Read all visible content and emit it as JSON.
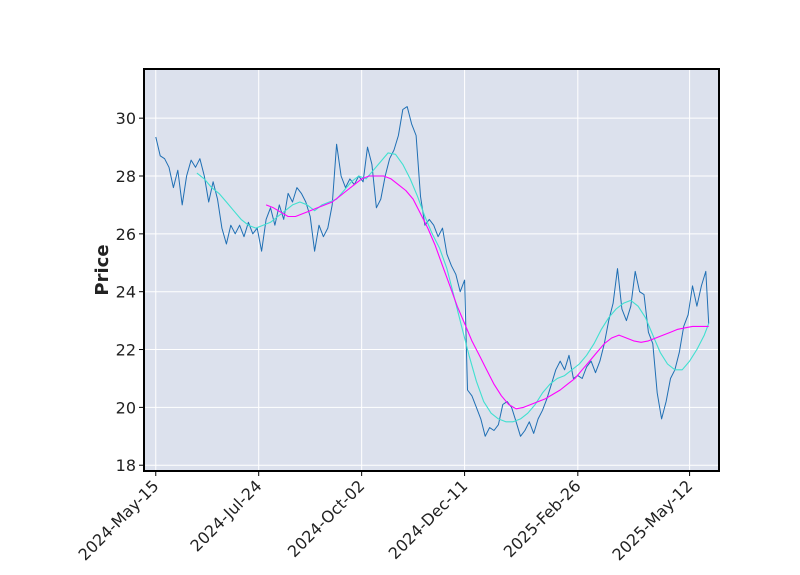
{
  "chart_data": {
    "type": "line",
    "title": "",
    "xlabel": "",
    "ylabel": "Price",
    "x_tick_labels": [
      "2024-May-15",
      "2024-Jul-24",
      "2024-Oct-02",
      "2024-Dec-11",
      "2025-Feb-26",
      "2025-May-12"
    ],
    "y_ticks": [
      18,
      20,
      22,
      24,
      26,
      28,
      30
    ],
    "ylim": [
      17.8,
      31.7
    ],
    "grid": true,
    "legend": "none",
    "colors": {
      "background": "#dce1ed",
      "grid": "#ffffff",
      "price": "#1f6fb4",
      "ma_fast": "#40e0d0",
      "ma_slow": "#ff00ff"
    },
    "series": [
      {
        "key": "price",
        "x_start": "2024-05-15",
        "points": [
          [
            0,
            29.35
          ],
          [
            3,
            28.7
          ],
          [
            6,
            28.6
          ],
          [
            9,
            28.3
          ],
          [
            12,
            27.6
          ],
          [
            15,
            28.2
          ],
          [
            18,
            27.0
          ],
          [
            21,
            28.0
          ],
          [
            24,
            28.55
          ],
          [
            27,
            28.3
          ],
          [
            30,
            28.6
          ],
          [
            33,
            28.0
          ],
          [
            36,
            27.1
          ],
          [
            39,
            27.8
          ],
          [
            42,
            27.2
          ],
          [
            45,
            26.2
          ],
          [
            48,
            25.65
          ],
          [
            51,
            26.3
          ],
          [
            54,
            26.0
          ],
          [
            57,
            26.3
          ],
          [
            60,
            25.9
          ],
          [
            63,
            26.4
          ],
          [
            66,
            26.0
          ],
          [
            69,
            26.2
          ],
          [
            72,
            25.4
          ],
          [
            75,
            26.5
          ],
          [
            78,
            26.9
          ],
          [
            81,
            26.3
          ],
          [
            84,
            27.0
          ],
          [
            87,
            26.5
          ],
          [
            90,
            27.4
          ],
          [
            93,
            27.1
          ],
          [
            96,
            27.6
          ],
          [
            99,
            27.4
          ],
          [
            102,
            27.1
          ],
          [
            105,
            26.6
          ],
          [
            108,
            25.4
          ],
          [
            111,
            26.3
          ],
          [
            114,
            25.9
          ],
          [
            117,
            26.2
          ],
          [
            120,
            27.0
          ],
          [
            123,
            29.1
          ],
          [
            126,
            28.0
          ],
          [
            129,
            27.6
          ],
          [
            132,
            27.9
          ],
          [
            135,
            27.7
          ],
          [
            138,
            28.0
          ],
          [
            141,
            27.8
          ],
          [
            144,
            29.0
          ],
          [
            147,
            28.4
          ],
          [
            150,
            26.9
          ],
          [
            153,
            27.2
          ],
          [
            156,
            28.0
          ],
          [
            159,
            28.6
          ],
          [
            162,
            28.9
          ],
          [
            165,
            29.4
          ],
          [
            168,
            30.3
          ],
          [
            171,
            30.4
          ],
          [
            174,
            29.8
          ],
          [
            177,
            29.4
          ],
          [
            180,
            27.3
          ],
          [
            183,
            26.3
          ],
          [
            186,
            26.5
          ],
          [
            189,
            26.3
          ],
          [
            192,
            25.9
          ],
          [
            195,
            26.2
          ],
          [
            198,
            25.3
          ],
          [
            201,
            24.9
          ],
          [
            204,
            24.6
          ],
          [
            207,
            24.0
          ],
          [
            210,
            24.4
          ],
          [
            212,
            20.6
          ],
          [
            215,
            20.4
          ],
          [
            218,
            20.0
          ],
          [
            221,
            19.6
          ],
          [
            224,
            19.0
          ],
          [
            227,
            19.3
          ],
          [
            230,
            19.2
          ],
          [
            233,
            19.4
          ],
          [
            236,
            20.1
          ],
          [
            239,
            20.2
          ],
          [
            242,
            20.0
          ],
          [
            245,
            19.5
          ],
          [
            248,
            19.0
          ],
          [
            251,
            19.2
          ],
          [
            254,
            19.5
          ],
          [
            257,
            19.1
          ],
          [
            260,
            19.6
          ],
          [
            263,
            19.9
          ],
          [
            266,
            20.3
          ],
          [
            269,
            20.8
          ],
          [
            272,
            21.3
          ],
          [
            275,
            21.6
          ],
          [
            278,
            21.3
          ],
          [
            281,
            21.8
          ],
          [
            284,
            21.0
          ],
          [
            287,
            21.1
          ],
          [
            290,
            21.0
          ],
          [
            293,
            21.4
          ],
          [
            296,
            21.6
          ],
          [
            299,
            21.2
          ],
          [
            302,
            21.6
          ],
          [
            305,
            22.2
          ],
          [
            308,
            23.0
          ],
          [
            311,
            23.6
          ],
          [
            314,
            24.8
          ],
          [
            317,
            23.4
          ],
          [
            320,
            23.0
          ],
          [
            323,
            23.5
          ],
          [
            326,
            24.7
          ],
          [
            329,
            24.0
          ],
          [
            332,
            23.9
          ],
          [
            335,
            22.6
          ],
          [
            338,
            22.2
          ],
          [
            341,
            20.5
          ],
          [
            344,
            19.6
          ],
          [
            347,
            20.2
          ],
          [
            350,
            21.0
          ],
          [
            353,
            21.3
          ],
          [
            356,
            21.9
          ],
          [
            359,
            22.8
          ],
          [
            362,
            23.2
          ],
          [
            365,
            24.2
          ],
          [
            368,
            23.5
          ],
          [
            371,
            24.2
          ],
          [
            374,
            24.7
          ],
          [
            376,
            22.9
          ]
        ]
      },
      {
        "key": "ma_fast",
        "x_start": "2024-05-15",
        "points": [
          [
            28,
            28.1
          ],
          [
            33,
            27.9
          ],
          [
            38,
            27.6
          ],
          [
            43,
            27.4
          ],
          [
            48,
            27.1
          ],
          [
            53,
            26.8
          ],
          [
            58,
            26.5
          ],
          [
            63,
            26.3
          ],
          [
            68,
            26.2
          ],
          [
            73,
            26.3
          ],
          [
            78,
            26.4
          ],
          [
            83,
            26.6
          ],
          [
            88,
            26.8
          ],
          [
            93,
            27.0
          ],
          [
            98,
            27.1
          ],
          [
            103,
            27.0
          ],
          [
            108,
            26.8
          ],
          [
            113,
            27.0
          ],
          [
            118,
            27.1
          ],
          [
            123,
            27.2
          ],
          [
            128,
            27.5
          ],
          [
            133,
            27.8
          ],
          [
            138,
            28.0
          ],
          [
            143,
            27.9
          ],
          [
            148,
            28.2
          ],
          [
            153,
            28.5
          ],
          [
            158,
            28.8
          ],
          [
            163,
            28.75
          ],
          [
            168,
            28.4
          ],
          [
            173,
            27.9
          ],
          [
            178,
            27.3
          ],
          [
            183,
            26.6
          ],
          [
            188,
            26.0
          ],
          [
            193,
            25.5
          ],
          [
            198,
            24.8
          ],
          [
            203,
            23.8
          ],
          [
            208,
            22.8
          ],
          [
            213,
            21.8
          ],
          [
            218,
            20.9
          ],
          [
            223,
            20.2
          ],
          [
            228,
            19.8
          ],
          [
            233,
            19.6
          ],
          [
            238,
            19.5
          ],
          [
            243,
            19.5
          ],
          [
            248,
            19.6
          ],
          [
            253,
            19.8
          ],
          [
            258,
            20.1
          ],
          [
            263,
            20.5
          ],
          [
            268,
            20.8
          ],
          [
            273,
            21.0
          ],
          [
            278,
            21.1
          ],
          [
            283,
            21.3
          ],
          [
            288,
            21.5
          ],
          [
            293,
            21.8
          ],
          [
            298,
            22.2
          ],
          [
            303,
            22.7
          ],
          [
            308,
            23.1
          ],
          [
            313,
            23.4
          ],
          [
            318,
            23.6
          ],
          [
            323,
            23.7
          ],
          [
            328,
            23.5
          ],
          [
            333,
            23.1
          ],
          [
            338,
            22.5
          ],
          [
            343,
            21.9
          ],
          [
            348,
            21.5
          ],
          [
            353,
            21.3
          ],
          [
            358,
            21.3
          ],
          [
            363,
            21.6
          ],
          [
            368,
            22.0
          ],
          [
            373,
            22.5
          ],
          [
            376,
            22.9
          ]
        ]
      },
      {
        "key": "ma_slow",
        "x_start": "2024-05-15",
        "points": [
          [
            75,
            27.0
          ],
          [
            80,
            26.9
          ],
          [
            85,
            26.75
          ],
          [
            90,
            26.6
          ],
          [
            95,
            26.6
          ],
          [
            100,
            26.7
          ],
          [
            105,
            26.8
          ],
          [
            110,
            26.9
          ],
          [
            115,
            27.0
          ],
          [
            120,
            27.1
          ],
          [
            125,
            27.3
          ],
          [
            130,
            27.5
          ],
          [
            135,
            27.7
          ],
          [
            140,
            27.9
          ],
          [
            145,
            28.0
          ],
          [
            150,
            28.0
          ],
          [
            155,
            28.0
          ],
          [
            160,
            27.9
          ],
          [
            165,
            27.7
          ],
          [
            170,
            27.5
          ],
          [
            175,
            27.2
          ],
          [
            180,
            26.7
          ],
          [
            185,
            26.2
          ],
          [
            190,
            25.6
          ],
          [
            195,
            24.9
          ],
          [
            200,
            24.2
          ],
          [
            205,
            23.5
          ],
          [
            210,
            22.9
          ],
          [
            215,
            22.3
          ],
          [
            220,
            21.8
          ],
          [
            225,
            21.3
          ],
          [
            230,
            20.8
          ],
          [
            235,
            20.4
          ],
          [
            240,
            20.1
          ],
          [
            245,
            19.95
          ],
          [
            250,
            20.0
          ],
          [
            255,
            20.1
          ],
          [
            260,
            20.2
          ],
          [
            265,
            20.3
          ],
          [
            270,
            20.45
          ],
          [
            275,
            20.6
          ],
          [
            280,
            20.8
          ],
          [
            285,
            21.0
          ],
          [
            290,
            21.3
          ],
          [
            295,
            21.6
          ],
          [
            300,
            21.9
          ],
          [
            305,
            22.2
          ],
          [
            310,
            22.4
          ],
          [
            315,
            22.5
          ],
          [
            320,
            22.4
          ],
          [
            325,
            22.3
          ],
          [
            330,
            22.25
          ],
          [
            335,
            22.3
          ],
          [
            340,
            22.4
          ],
          [
            345,
            22.5
          ],
          [
            350,
            22.6
          ],
          [
            355,
            22.7
          ],
          [
            360,
            22.75
          ],
          [
            365,
            22.8
          ],
          [
            370,
            22.8
          ],
          [
            376,
            22.8
          ]
        ]
      }
    ]
  }
}
